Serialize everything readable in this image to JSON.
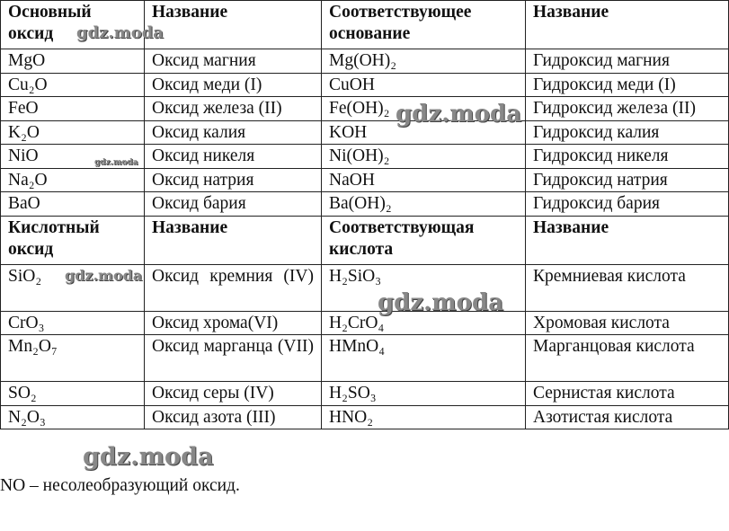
{
  "basic": {
    "headers": [
      "Основный оксид",
      "Название",
      "Соответствующее основание",
      "Название"
    ],
    "rows": [
      [
        "MgO",
        "Оксид магния",
        "Mg(OH)₂",
        "Гидроксид магния"
      ],
      [
        "Cu₂O",
        "Оксид меди (I)",
        "CuOH",
        "Гидроксид меди (I)"
      ],
      [
        "FeO",
        "Оксид железа (II)",
        "Fe(OH)₂",
        "Гидроксид железа (II)"
      ],
      [
        "K₂O",
        "Оксид калия",
        "KOH",
        "Гидроксид калия"
      ],
      [
        "NiO",
        "Оксид никеля",
        "Ni(OH)₂",
        "Гидроксид никеля"
      ],
      [
        "Na₂O",
        "Оксид натрия",
        "NaOH",
        "Гидроксид натрия"
      ],
      [
        "BaO",
        "Оксид бария",
        "Ba(OH)₂",
        "Гидроксид бария"
      ]
    ]
  },
  "acidic": {
    "headers": [
      "Кислотный оксид",
      "Название",
      "Соответствующая кислота",
      "Название"
    ],
    "rows": [
      [
        "SiO₂",
        "Оксид кремния (IV)",
        "H₂SiO₃",
        "Кремниевая кислота"
      ],
      [
        "CrO₃",
        "Оксид хрома(VI)",
        "H₂CrO₄",
        "Хромовая кислота"
      ],
      [
        "Mn₂O₇",
        "Оксид марганца (VII)",
        "HMnO₄",
        "Марганцовая кислота"
      ],
      [
        "SO₂",
        "Оксид серы (IV)",
        "H₂SO₃",
        "Сернистая кислота"
      ],
      [
        "N₂O₃",
        "Оксид азота (III)",
        "HNO₂",
        "Азотистая кислота"
      ]
    ]
  },
  "note": "NO – несолеобразующий оксид.",
  "watermark": "gdz.moda"
}
